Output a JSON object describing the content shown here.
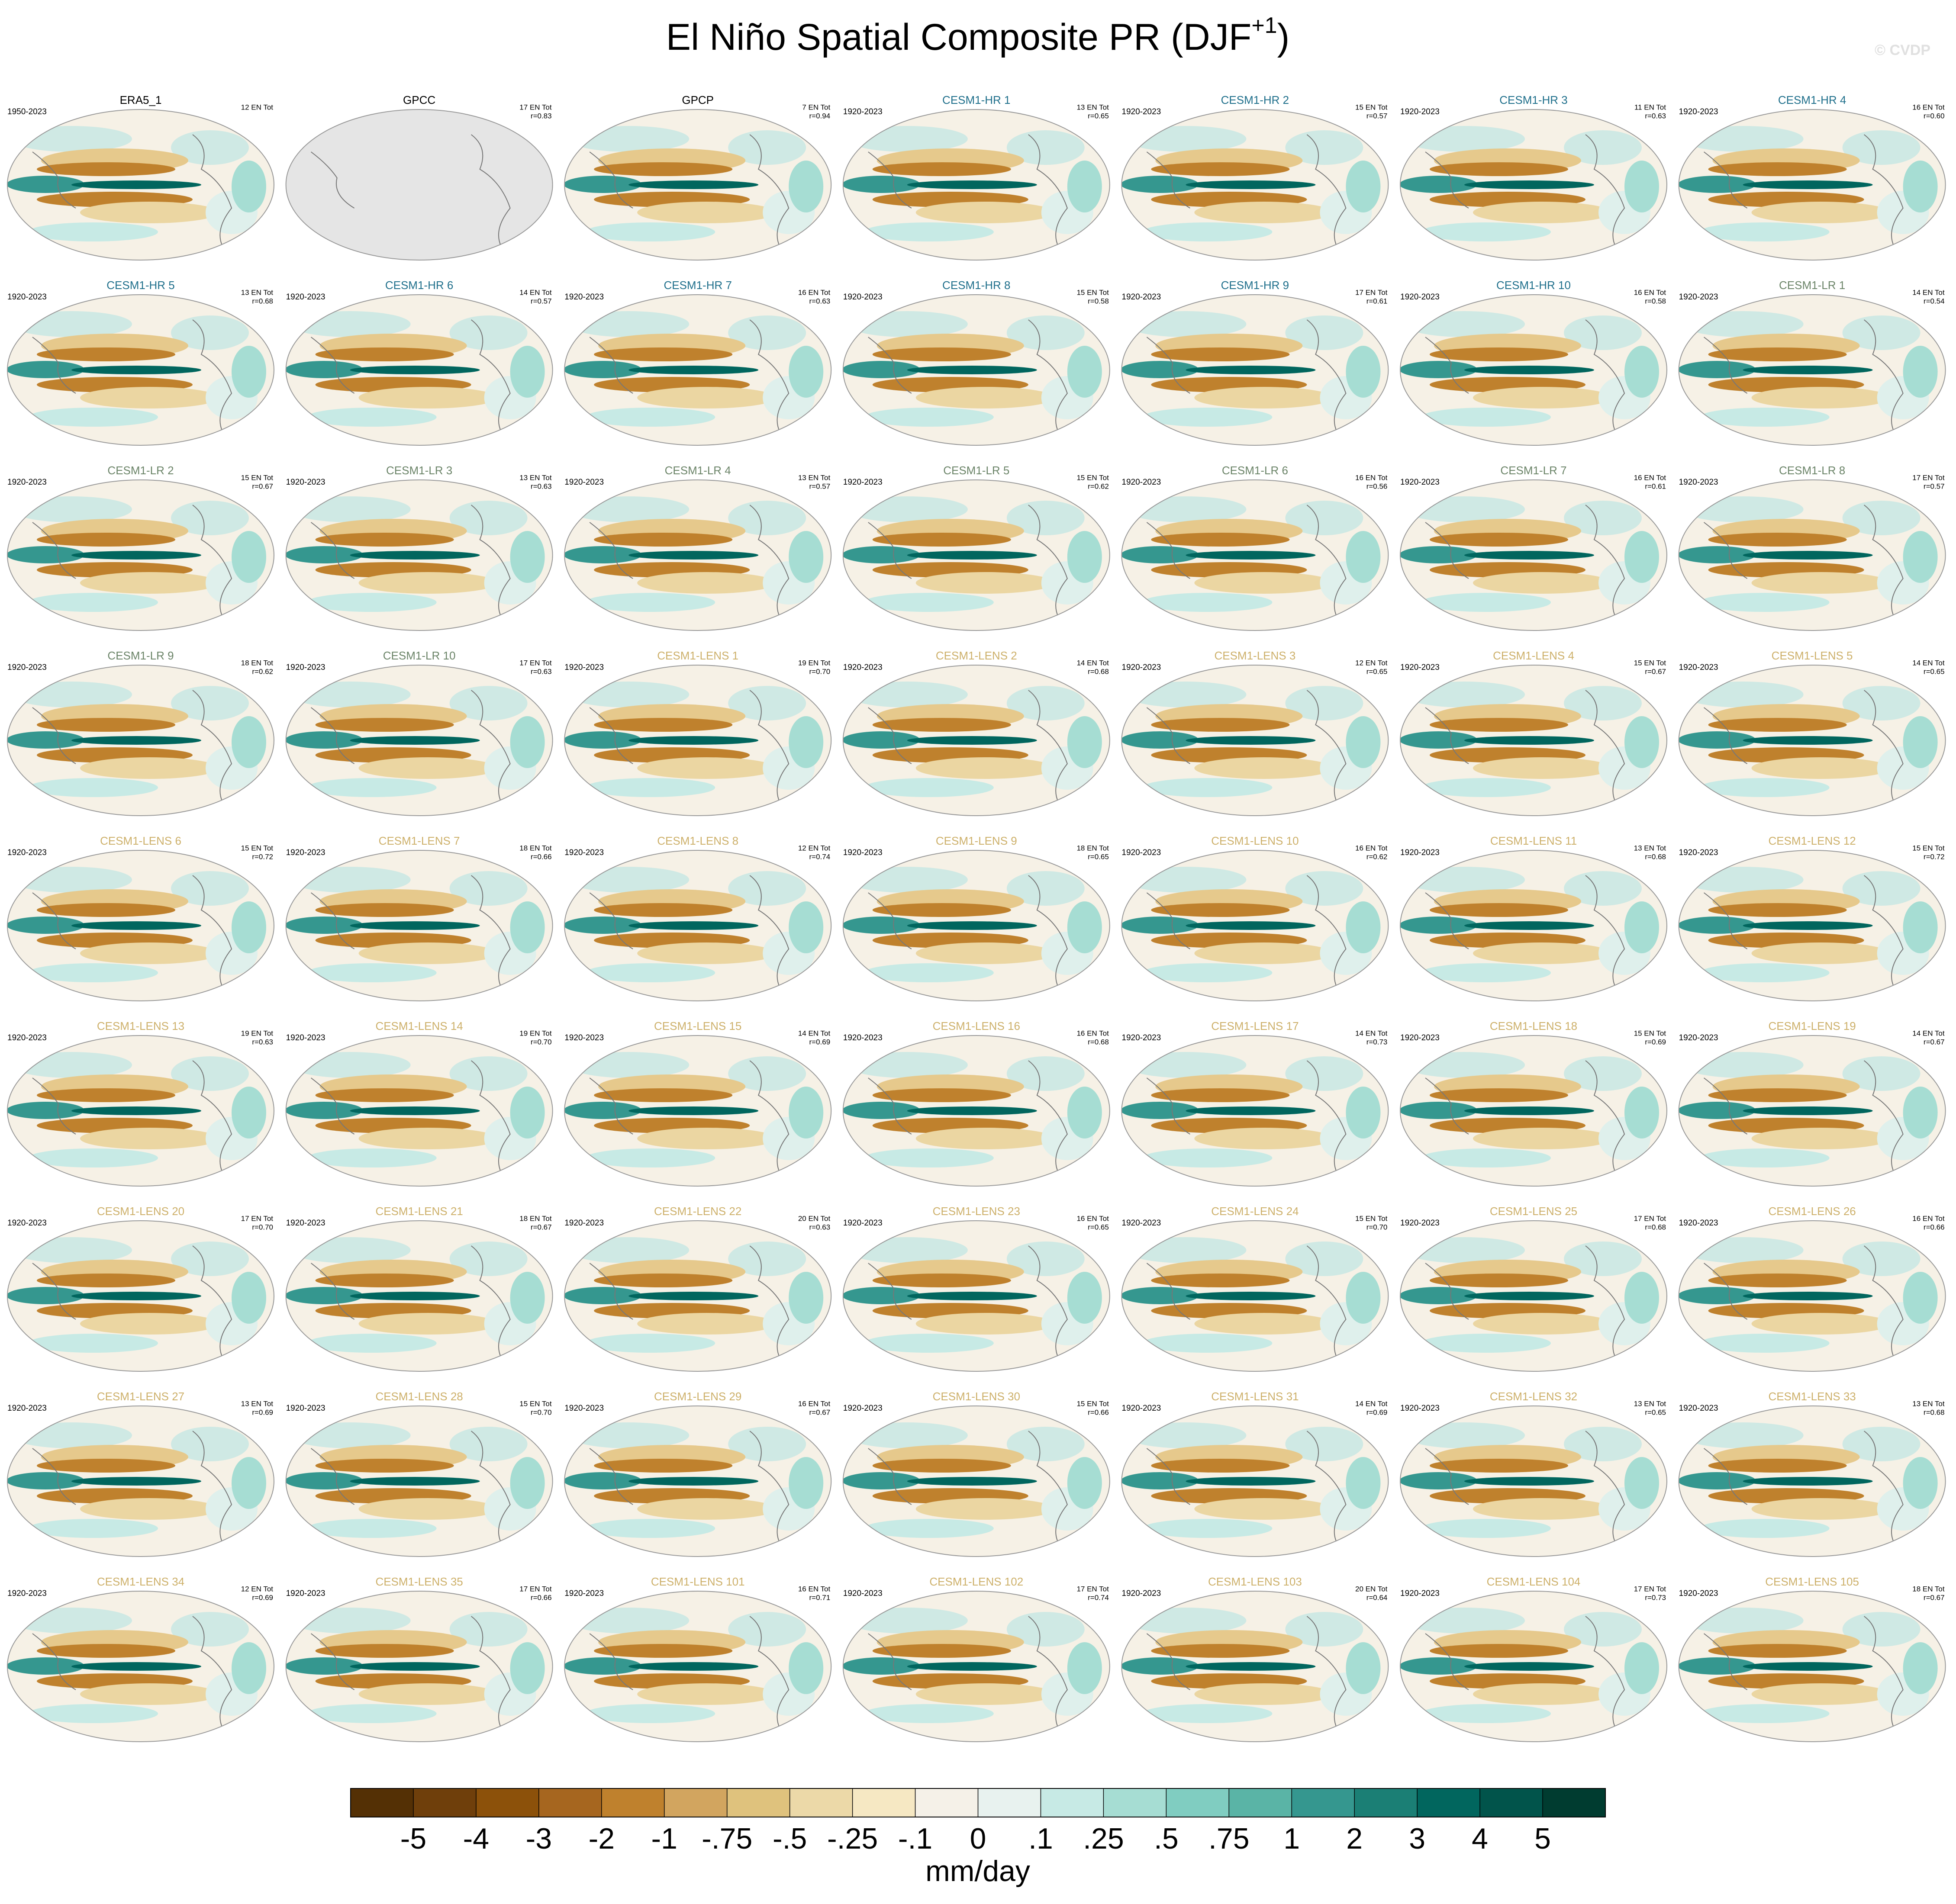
{
  "title": "El Niño Spatial Composite PR (DJF",
  "title_sup": "+1",
  "title_end": ")",
  "watermark": "© CVDP",
  "panels": [
    {
      "title": "ERA5_1",
      "color": "#000000",
      "years": "1950-2023",
      "count": "12 EN Tot"
    },
    {
      "title": "GPCC",
      "color": "#000000",
      "count": "17 EN Tot",
      "r": "r=0.83",
      "missing": true
    },
    {
      "title": "GPCP",
      "color": "#000000",
      "count": "7 EN Tot",
      "r": "r=0.94"
    },
    {
      "title": "CESM1-HR 1",
      "color": "#1f6f8b",
      "years": "1920-2023",
      "count": "13 EN Tot",
      "r": "r=0.65"
    },
    {
      "title": "CESM1-HR 2",
      "color": "#1f6f8b",
      "years": "1920-2023",
      "count": "15 EN Tot",
      "r": "r=0.57"
    },
    {
      "title": "CESM1-HR 3",
      "color": "#1f6f8b",
      "years": "1920-2023",
      "count": "11 EN Tot",
      "r": "r=0.63"
    },
    {
      "title": "CESM1-HR 4",
      "color": "#1f6f8b",
      "years": "1920-2023",
      "count": "16 EN Tot",
      "r": "r=0.60"
    },
    {
      "title": "CESM1-HR 5",
      "color": "#1f6f8b",
      "years": "1920-2023",
      "count": "13 EN Tot",
      "r": "r=0.68"
    },
    {
      "title": "CESM1-HR 6",
      "color": "#1f6f8b",
      "years": "1920-2023",
      "count": "14 EN Tot",
      "r": "r=0.57"
    },
    {
      "title": "CESM1-HR 7",
      "color": "#1f6f8b",
      "years": "1920-2023",
      "count": "16 EN Tot",
      "r": "r=0.63"
    },
    {
      "title": "CESM1-HR 8",
      "color": "#1f6f8b",
      "years": "1920-2023",
      "count": "15 EN Tot",
      "r": "r=0.58"
    },
    {
      "title": "CESM1-HR 9",
      "color": "#1f6f8b",
      "years": "1920-2023",
      "count": "17 EN Tot",
      "r": "r=0.61"
    },
    {
      "title": "CESM1-HR 10",
      "color": "#1f6f8b",
      "years": "1920-2023",
      "count": "16 EN Tot",
      "r": "r=0.58"
    },
    {
      "title": "CESM1-LR 1",
      "color": "#6b8468",
      "years": "1920-2023",
      "count": "14 EN Tot",
      "r": "r=0.54"
    },
    {
      "title": "CESM1-LR 2",
      "color": "#6b8468",
      "years": "1920-2023",
      "count": "15 EN Tot",
      "r": "r=0.67"
    },
    {
      "title": "CESM1-LR 3",
      "color": "#6b8468",
      "years": "1920-2023",
      "count": "13 EN Tot",
      "r": "r=0.63"
    },
    {
      "title": "CESM1-LR 4",
      "color": "#6b8468",
      "years": "1920-2023",
      "count": "13 EN Tot",
      "r": "r=0.57"
    },
    {
      "title": "CESM1-LR 5",
      "color": "#6b8468",
      "years": "1920-2023",
      "count": "15 EN Tot",
      "r": "r=0.62"
    },
    {
      "title": "CESM1-LR 6",
      "color": "#6b8468",
      "years": "1920-2023",
      "count": "16 EN Tot",
      "r": "r=0.56"
    },
    {
      "title": "CESM1-LR 7",
      "color": "#6b8468",
      "years": "1920-2023",
      "count": "16 EN Tot",
      "r": "r=0.61"
    },
    {
      "title": "CESM1-LR 8",
      "color": "#6b8468",
      "years": "1920-2023",
      "count": "17 EN Tot",
      "r": "r=0.57"
    },
    {
      "title": "CESM1-LR 9",
      "color": "#6b8468",
      "years": "1920-2023",
      "count": "18 EN Tot",
      "r": "r=0.62"
    },
    {
      "title": "CESM1-LR 10",
      "color": "#6b8468",
      "years": "1920-2023",
      "count": "17 EN Tot",
      "r": "r=0.63"
    },
    {
      "title": "CESM1-LENS 1",
      "color": "#cdb06a",
      "years": "1920-2023",
      "count": "19 EN Tot",
      "r": "r=0.70"
    },
    {
      "title": "CESM1-LENS 2",
      "color": "#cdb06a",
      "years": "1920-2023",
      "count": "14 EN Tot",
      "r": "r=0.68"
    },
    {
      "title": "CESM1-LENS 3",
      "color": "#cdb06a",
      "years": "1920-2023",
      "count": "12 EN Tot",
      "r": "r=0.65"
    },
    {
      "title": "CESM1-LENS 4",
      "color": "#cdb06a",
      "years": "1920-2023",
      "count": "15 EN Tot",
      "r": "r=0.67"
    },
    {
      "title": "CESM1-LENS 5",
      "color": "#cdb06a",
      "years": "1920-2023",
      "count": "14 EN Tot",
      "r": "r=0.65"
    },
    {
      "title": "CESM1-LENS 6",
      "color": "#cdb06a",
      "years": "1920-2023",
      "count": "15 EN Tot",
      "r": "r=0.72"
    },
    {
      "title": "CESM1-LENS 7",
      "color": "#cdb06a",
      "years": "1920-2023",
      "count": "18 EN Tot",
      "r": "r=0.66"
    },
    {
      "title": "CESM1-LENS 8",
      "color": "#cdb06a",
      "years": "1920-2023",
      "count": "12 EN Tot",
      "r": "r=0.74"
    },
    {
      "title": "CESM1-LENS 9",
      "color": "#cdb06a",
      "years": "1920-2023",
      "count": "18 EN Tot",
      "r": "r=0.65"
    },
    {
      "title": "CESM1-LENS 10",
      "color": "#cdb06a",
      "years": "1920-2023",
      "count": "16 EN Tot",
      "r": "r=0.62"
    },
    {
      "title": "CESM1-LENS 11",
      "color": "#cdb06a",
      "years": "1920-2023",
      "count": "13 EN Tot",
      "r": "r=0.68"
    },
    {
      "title": "CESM1-LENS 12",
      "color": "#cdb06a",
      "years": "1920-2023",
      "count": "15 EN Tot",
      "r": "r=0.72"
    },
    {
      "title": "CESM1-LENS 13",
      "color": "#cdb06a",
      "years": "1920-2023",
      "count": "19 EN Tot",
      "r": "r=0.63"
    },
    {
      "title": "CESM1-LENS 14",
      "color": "#cdb06a",
      "years": "1920-2023",
      "count": "19 EN Tot",
      "r": "r=0.70"
    },
    {
      "title": "CESM1-LENS 15",
      "color": "#cdb06a",
      "years": "1920-2023",
      "count": "14 EN Tot",
      "r": "r=0.69"
    },
    {
      "title": "CESM1-LENS 16",
      "color": "#cdb06a",
      "years": "1920-2023",
      "count": "16 EN Tot",
      "r": "r=0.68"
    },
    {
      "title": "CESM1-LENS 17",
      "color": "#cdb06a",
      "years": "1920-2023",
      "count": "14 EN Tot",
      "r": "r=0.73"
    },
    {
      "title": "CESM1-LENS 18",
      "color": "#cdb06a",
      "years": "1920-2023",
      "count": "15 EN Tot",
      "r": "r=0.69"
    },
    {
      "title": "CESM1-LENS 19",
      "color": "#cdb06a",
      "years": "1920-2023",
      "count": "14 EN Tot",
      "r": "r=0.67"
    },
    {
      "title": "CESM1-LENS 20",
      "color": "#cdb06a",
      "years": "1920-2023",
      "count": "17 EN Tot",
      "r": "r=0.70"
    },
    {
      "title": "CESM1-LENS 21",
      "color": "#cdb06a",
      "years": "1920-2023",
      "count": "18 EN Tot",
      "r": "r=0.67"
    },
    {
      "title": "CESM1-LENS 22",
      "color": "#cdb06a",
      "years": "1920-2023",
      "count": "20 EN Tot",
      "r": "r=0.63"
    },
    {
      "title": "CESM1-LENS 23",
      "color": "#cdb06a",
      "years": "1920-2023",
      "count": "16 EN Tot",
      "r": "r=0.65"
    },
    {
      "title": "CESM1-LENS 24",
      "color": "#cdb06a",
      "years": "1920-2023",
      "count": "15 EN Tot",
      "r": "r=0.70"
    },
    {
      "title": "CESM1-LENS 25",
      "color": "#cdb06a",
      "years": "1920-2023",
      "count": "17 EN Tot",
      "r": "r=0.68"
    },
    {
      "title": "CESM1-LENS 26",
      "color": "#cdb06a",
      "years": "1920-2023",
      "count": "16 EN Tot",
      "r": "r=0.66"
    },
    {
      "title": "CESM1-LENS 27",
      "color": "#cdb06a",
      "years": "1920-2023",
      "count": "13 EN Tot",
      "r": "r=0.69"
    },
    {
      "title": "CESM1-LENS 28",
      "color": "#cdb06a",
      "years": "1920-2023",
      "count": "15 EN Tot",
      "r": "r=0.70"
    },
    {
      "title": "CESM1-LENS 29",
      "color": "#cdb06a",
      "years": "1920-2023",
      "count": "16 EN Tot",
      "r": "r=0.67"
    },
    {
      "title": "CESM1-LENS 30",
      "color": "#cdb06a",
      "years": "1920-2023",
      "count": "15 EN Tot",
      "r": "r=0.66"
    },
    {
      "title": "CESM1-LENS 31",
      "color": "#cdb06a",
      "years": "1920-2023",
      "count": "14 EN Tot",
      "r": "r=0.69"
    },
    {
      "title": "CESM1-LENS 32",
      "color": "#cdb06a",
      "years": "1920-2023",
      "count": "13 EN Tot",
      "r": "r=0.65"
    },
    {
      "title": "CESM1-LENS 33",
      "color": "#cdb06a",
      "years": "1920-2023",
      "count": "13 EN Tot",
      "r": "r=0.68"
    },
    {
      "title": "CESM1-LENS 34",
      "color": "#cdb06a",
      "years": "1920-2023",
      "count": "12 EN Tot",
      "r": "r=0.69"
    },
    {
      "title": "CESM1-LENS 35",
      "color": "#cdb06a",
      "years": "1920-2023",
      "count": "17 EN Tot",
      "r": "r=0.66"
    },
    {
      "title": "CESM1-LENS 101",
      "color": "#cdb06a",
      "years": "1920-2023",
      "count": "16 EN Tot",
      "r": "r=0.71"
    },
    {
      "title": "CESM1-LENS 102",
      "color": "#cdb06a",
      "years": "1920-2023",
      "count": "17 EN Tot",
      "r": "r=0.74"
    },
    {
      "title": "CESM1-LENS 103",
      "color": "#cdb06a",
      "years": "1920-2023",
      "count": "20 EN Tot",
      "r": "r=0.64"
    },
    {
      "title": "CESM1-LENS 104",
      "color": "#cdb06a",
      "years": "1920-2023",
      "count": "17 EN Tot",
      "r": "r=0.73"
    },
    {
      "title": "CESM1-LENS 105",
      "color": "#cdb06a",
      "years": "1920-2023",
      "count": "18 EN Tot",
      "r": "r=0.67"
    }
  ],
  "colorbar": {
    "colors": [
      "#543005",
      "#6f3f0b",
      "#8c510a",
      "#a6661f",
      "#bf812d",
      "#d2a55f",
      "#dfc27d",
      "#ecd9a8",
      "#f6e8c3",
      "#f5f1e8",
      "#e8f2ef",
      "#c7eae5",
      "#a6ddd3",
      "#80cdc1",
      "#5ab4a6",
      "#35978f",
      "#1b7f75",
      "#01665e",
      "#01544b",
      "#003c30"
    ],
    "labels": [
      "-5",
      "-4",
      "-3",
      "-2",
      "-1",
      "-.75",
      "-.5",
      "-.25",
      "-.1",
      "0",
      ".1",
      ".25",
      ".5",
      ".75",
      "1",
      "2",
      "3",
      "4",
      "5"
    ],
    "unit": "mm/day"
  }
}
